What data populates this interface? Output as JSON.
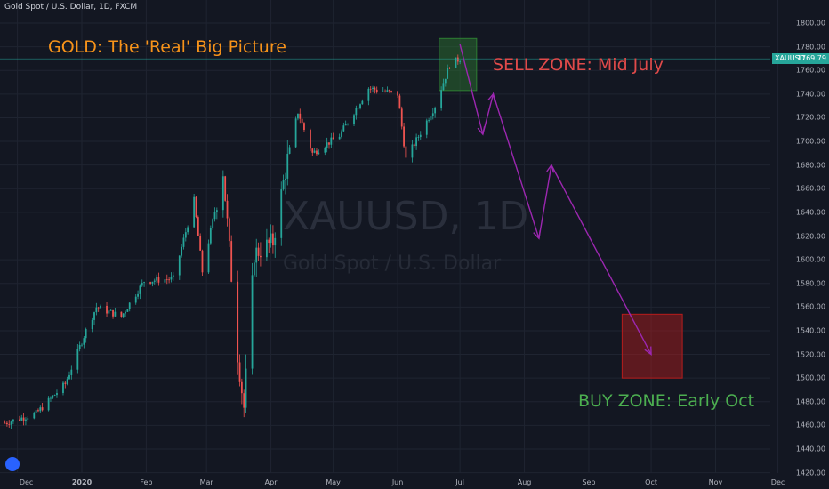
{
  "header": {
    "title": "Gold Spot / U.S. Dollar, 1D, FXCM"
  },
  "watermark": {
    "symbol": "XAUUSD, 1D",
    "name": "Gold Spot / U.S. Dollar"
  },
  "annotations": {
    "title": "GOLD: The 'Real' Big Picture",
    "sell": "SELL ZONE: Mid July",
    "buy": "BUY ZONE: Early Oct"
  },
  "price_tag": {
    "symbol": "XAUUSD",
    "price": "1769.79"
  },
  "colors": {
    "background": "#131722",
    "grid": "#1f2431",
    "up": "#26a69a",
    "down": "#ef5350",
    "projection": "#9c27b0",
    "sell_zone": "#2e7d32",
    "buy_zone": "#b71c1c",
    "title_text": "#f7931a",
    "sell_text": "#e04a4a",
    "buy_text": "#4caf50"
  },
  "chart_data": {
    "type": "candlestick",
    "title": "Gold Spot / U.S. Dollar, 1D, FXCM",
    "ylim": [
      1420,
      1800
    ],
    "y_ticks": [
      "1420.00",
      "1440.00",
      "1460.00",
      "1480.00",
      "1500.00",
      "1520.00",
      "1540.00",
      "1560.00",
      "1580.00",
      "1600.00",
      "1620.00",
      "1640.00",
      "1660.00",
      "1680.00",
      "1700.00",
      "1720.00",
      "1740.00",
      "1760.00",
      "1780.00",
      "1800.00"
    ],
    "x_ticks": [
      "Dec",
      "2020",
      "Feb",
      "Mar",
      "Apr",
      "May",
      "Jun",
      "Jul",
      "Aug",
      "Sep",
      "Oct",
      "Nov",
      "Dec"
    ],
    "x_tick_dates": [
      "2019-12-01",
      "2020-01-01",
      "2020-02-01",
      "2020-03-01",
      "2020-04-01",
      "2020-05-01",
      "2020-06-01",
      "2020-07-01",
      "2020-08-01",
      "2020-09-01",
      "2020-10-01",
      "2020-11-01",
      "2020-12-01"
    ],
    "last_price": 1769.79,
    "price_series": {
      "dates": [
        "2019-11-25",
        "2019-12-10",
        "2019-12-24",
        "2020-01-03",
        "2020-01-08",
        "2020-01-20",
        "2020-01-31",
        "2020-02-14",
        "2020-02-24",
        "2020-02-28",
        "2020-03-09",
        "2020-03-16",
        "2020-03-19",
        "2020-03-24",
        "2020-04-02",
        "2020-04-09",
        "2020-04-14",
        "2020-04-21",
        "2020-05-04",
        "2020-05-18",
        "2020-06-01",
        "2020-06-05",
        "2020-06-19",
        "2020-06-26",
        "2020-07-01"
      ],
      "close": [
        1462,
        1470,
        1495,
        1540,
        1560,
        1552,
        1582,
        1584,
        1650,
        1590,
        1675,
        1520,
        1475,
        1605,
        1615,
        1685,
        1725,
        1690,
        1705,
        1745,
        1740,
        1685,
        1730,
        1765,
        1770
      ]
    },
    "zones": [
      {
        "label": "SELL ZONE: Mid July",
        "start": "2020-06-21",
        "end": "2020-07-09",
        "low": 1743,
        "high": 1787
      },
      {
        "label": "BUY ZONE: Early Oct",
        "start": "2020-09-17",
        "end": "2020-10-16",
        "low": 1500,
        "high": 1554
      }
    ],
    "projection": {
      "dates": [
        "2020-07-01",
        "2020-07-12",
        "2020-07-17",
        "2020-08-08",
        "2020-08-14",
        "2020-10-01"
      ],
      "values": [
        1782,
        1706,
        1740,
        1618,
        1680,
        1520
      ]
    }
  }
}
